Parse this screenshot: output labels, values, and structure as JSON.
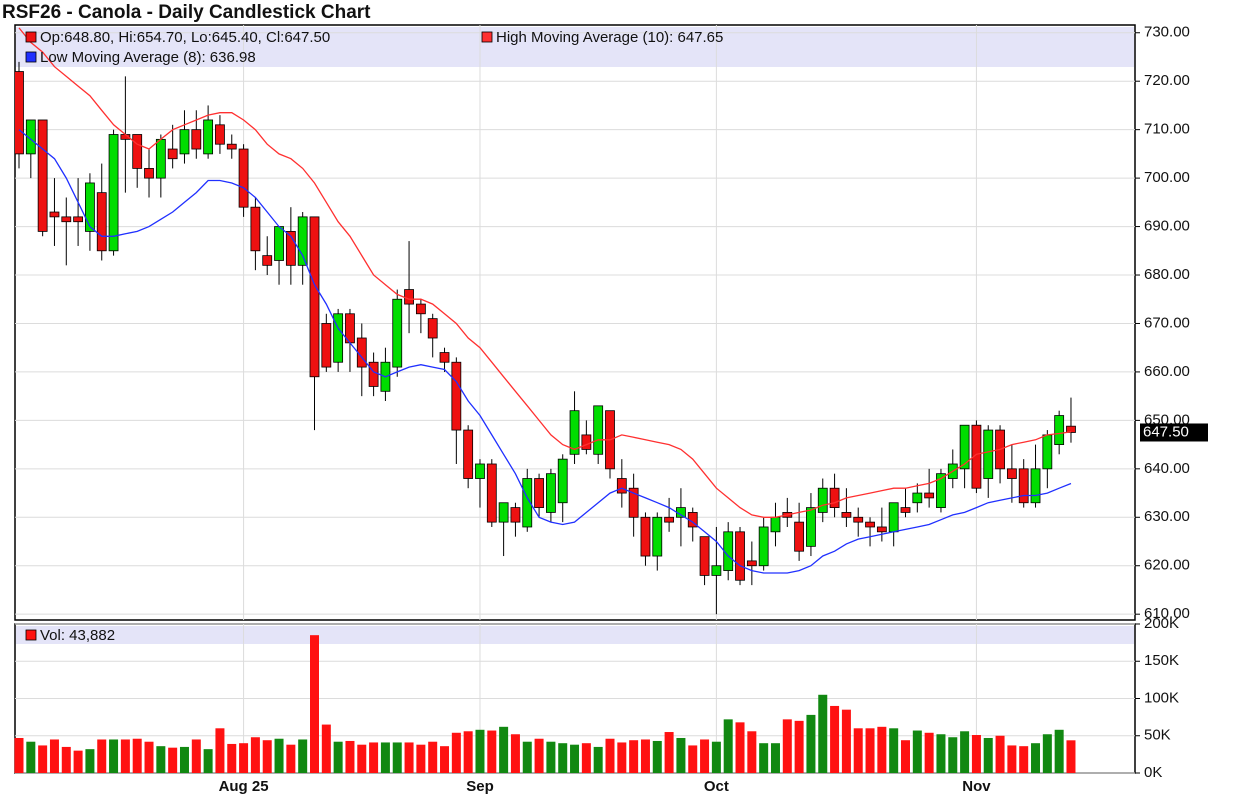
{
  "chart_data": [
    {
      "type": "candlestick",
      "title": "RSF26 - Canola - Daily Candlestick Chart",
      "ohlc_label": "Op:648.80, Hi:654.70, Lo:645.40, Cl:647.50",
      "last_label": "647.50",
      "categories": [
        null,
        null,
        null,
        null,
        null,
        null,
        null,
        null,
        null,
        null,
        null,
        null,
        null,
        null,
        null,
        null,
        null,
        null,
        null,
        "Aug 25",
        null,
        null,
        null,
        null,
        null,
        null,
        null,
        null,
        null,
        null,
        null,
        null,
        null,
        null,
        null,
        null,
        null,
        null,
        null,
        "Sep",
        null,
        null,
        null,
        null,
        null,
        null,
        null,
        null,
        null,
        null,
        null,
        null,
        null,
        null,
        null,
        null,
        null,
        null,
        null,
        "Oct",
        null,
        null,
        null,
        null,
        null,
        null,
        null,
        null,
        null,
        null,
        null,
        null,
        null,
        null,
        null,
        null,
        null,
        null,
        null,
        null,
        null,
        "Nov",
        null,
        null,
        null,
        null,
        null,
        null,
        null,
        null
      ],
      "open": [
        722,
        705,
        712,
        693,
        692,
        692,
        689,
        697,
        685,
        709,
        709,
        702,
        700,
        706,
        705,
        710,
        705,
        711,
        707,
        706,
        694,
        684,
        683,
        689,
        682,
        692,
        670,
        662,
        672,
        667,
        662,
        656,
        661,
        677,
        674,
        671,
        664,
        662,
        648,
        638,
        641,
        629,
        632,
        628,
        638,
        631,
        633,
        643,
        647,
        643,
        652,
        638,
        636,
        630,
        622,
        630,
        630,
        631,
        626,
        618,
        619,
        627,
        621,
        620,
        627,
        631,
        629,
        624,
        631,
        636,
        631,
        630,
        629,
        628,
        627,
        632,
        633,
        635,
        632,
        638,
        640,
        649,
        638,
        648,
        640,
        640,
        633,
        640,
        645,
        648.8
      ],
      "high": [
        724,
        712,
        712,
        700,
        696,
        700,
        701,
        703,
        710,
        721,
        709,
        706,
        709,
        711,
        714,
        714,
        715,
        713,
        709,
        707,
        696,
        688,
        690,
        694,
        693,
        692,
        672,
        673,
        673,
        670,
        664,
        665,
        677,
        687,
        675,
        672,
        665,
        663,
        649,
        642,
        642,
        633,
        633,
        640,
        639,
        640,
        643,
        656,
        650,
        653,
        652,
        642,
        639,
        631,
        631,
        634,
        636,
        632,
        626,
        628,
        629,
        628,
        625,
        630,
        633,
        634,
        633,
        635,
        638,
        639,
        636,
        632,
        630,
        632,
        633,
        636,
        637,
        640,
        640,
        644,
        649,
        650,
        649,
        649,
        645,
        642,
        645,
        648,
        652,
        654.7
      ],
      "low": [
        702,
        700,
        688,
        686,
        682,
        686,
        685,
        683,
        684,
        697,
        698,
        696,
        696,
        702,
        703,
        704,
        704,
        705,
        704,
        692,
        681,
        680,
        678,
        678,
        678,
        648,
        660,
        660,
        660,
        655,
        655,
        654,
        659,
        668,
        668,
        663,
        660,
        641,
        636,
        632,
        628,
        622,
        626,
        627,
        630,
        629,
        629,
        641,
        643,
        641,
        638,
        632,
        626,
        620,
        619,
        627,
        624,
        625,
        616,
        610,
        617,
        616,
        616,
        619,
        624,
        628,
        621,
        622,
        629,
        630,
        628,
        626,
        624,
        625,
        624,
        630,
        631,
        632,
        631,
        636,
        636,
        635,
        634,
        637,
        633,
        632,
        632,
        636,
        643,
        645.4
      ],
      "close": [
        705,
        712,
        689,
        692,
        691,
        691,
        699,
        685,
        709,
        708,
        702,
        700,
        708,
        704,
        710,
        706,
        712,
        707,
        706,
        694,
        685,
        682,
        690,
        682,
        692,
        659,
        661,
        672,
        666,
        661,
        657,
        662,
        675,
        674,
        672,
        667,
        662,
        648,
        638,
        641,
        629,
        633,
        629,
        638,
        632,
        639,
        642,
        652,
        644,
        653,
        640,
        635,
        630,
        622,
        630,
        629,
        632,
        628,
        618,
        620,
        627,
        617,
        620,
        628,
        630,
        630,
        623,
        632,
        636,
        632,
        630,
        629,
        628,
        627,
        633,
        631,
        635,
        634,
        639,
        641,
        649,
        636,
        648,
        640,
        638,
        633,
        640,
        647,
        651,
        647.5
      ],
      "up_color": "#00dd00",
      "down_color": "#ee1111",
      "series": [
        {
          "name": "High Moving Average (10): 647.65",
          "color": "#ff3030",
          "values": [
            731,
            728,
            726,
            723,
            721,
            719,
            717,
            714,
            711,
            709,
            707,
            706,
            708,
            710,
            711,
            712,
            713,
            713.5,
            713.5,
            712,
            710,
            707,
            705,
            704,
            702,
            699,
            695,
            691,
            688,
            684,
            680,
            678,
            676,
            675,
            675,
            674,
            672,
            670,
            667,
            665,
            662,
            659,
            656,
            653,
            650,
            647,
            645,
            644,
            645,
            646,
            646,
            647,
            646.5,
            646,
            645.5,
            645,
            644,
            642,
            639,
            636,
            634,
            632,
            630.5,
            630,
            630,
            630.5,
            631,
            631.5,
            632.5,
            633,
            634,
            634.5,
            635,
            635.5,
            636,
            636,
            636.5,
            637,
            638,
            639.5,
            641,
            643,
            643.5,
            644,
            645,
            645.5,
            646,
            647,
            647.3,
            647.65
          ]
        },
        {
          "name": "Low Moving Average (8): 636.98",
          "color": "#2030ff",
          "values": [
            710,
            708,
            706,
            704,
            700,
            695,
            690,
            688,
            688,
            688.5,
            689,
            690,
            691.5,
            693,
            695,
            697,
            699.5,
            699.5,
            699,
            698,
            696,
            693,
            690,
            688,
            684,
            678,
            674,
            669,
            666,
            663,
            660,
            659,
            660,
            661,
            661.5,
            661,
            660.5,
            658,
            654,
            651,
            647,
            643,
            639,
            634,
            630,
            629,
            628.5,
            629,
            631,
            633,
            635,
            636,
            635,
            634,
            633,
            632,
            630.5,
            629,
            627,
            625,
            622,
            620,
            619,
            618.5,
            618.5,
            618.5,
            619,
            620,
            622,
            623,
            624.5,
            625.5,
            626,
            626.5,
            627,
            627.5,
            628,
            628.5,
            629.5,
            630.5,
            631,
            632,
            633,
            633.5,
            634,
            634.5,
            634.5,
            635,
            636,
            636.98
          ]
        }
      ],
      "ylim": [
        608.8,
        731.6
      ],
      "yticks": [
        {
          "value": 610,
          "label": "610.00"
        },
        {
          "value": 620,
          "label": "620.00"
        },
        {
          "value": 630,
          "label": "630.00"
        },
        {
          "value": 640,
          "label": "640.00"
        },
        {
          "value": 650,
          "label": "650.00"
        },
        {
          "value": 660,
          "label": "660.00"
        },
        {
          "value": 670,
          "label": "670.00"
        },
        {
          "value": 680,
          "label": "680.00"
        },
        {
          "value": 690,
          "label": "690.00"
        },
        {
          "value": 700,
          "label": "700.00"
        },
        {
          "value": 710,
          "label": "710.00"
        },
        {
          "value": 720,
          "label": "720.00"
        },
        {
          "value": 730,
          "label": "730.00"
        }
      ],
      "grid": true
    },
    {
      "type": "bar",
      "legend": "Vol: 43,882",
      "values": [
        47000,
        42000,
        37000,
        45000,
        35000,
        30000,
        32000,
        45000,
        45000,
        45000,
        46000,
        42000,
        36000,
        34000,
        35000,
        45000,
        32000,
        60000,
        39000,
        40000,
        48000,
        44000,
        46000,
        38000,
        45000,
        185000,
        65000,
        42000,
        43000,
        38000,
        41000,
        41000,
        41000,
        41000,
        38000,
        42000,
        36000,
        54000,
        56000,
        58000,
        57000,
        62000,
        52000,
        42000,
        46000,
        42000,
        40000,
        38000,
        40000,
        35000,
        46000,
        41000,
        44000,
        45000,
        43000,
        55000,
        47000,
        37000,
        45000,
        42000,
        72000,
        68000,
        56000,
        40000,
        40000,
        72000,
        70000,
        78000,
        105000,
        90000,
        85000,
        60000,
        60000,
        62000,
        60000,
        44000,
        57000,
        54000,
        52000,
        48000,
        56000,
        51000,
        47000,
        50000,
        37000,
        36000,
        40000,
        52000,
        58000,
        43882
      ],
      "ylim": [
        0,
        200000
      ],
      "yticks": [
        {
          "value": 0,
          "label": "0K"
        },
        {
          "value": 50000,
          "label": "50K"
        },
        {
          "value": 100000,
          "label": "100K"
        },
        {
          "value": 150000,
          "label": "150K"
        },
        {
          "value": 200000,
          "label": "200K"
        }
      ],
      "grid": true
    }
  ]
}
